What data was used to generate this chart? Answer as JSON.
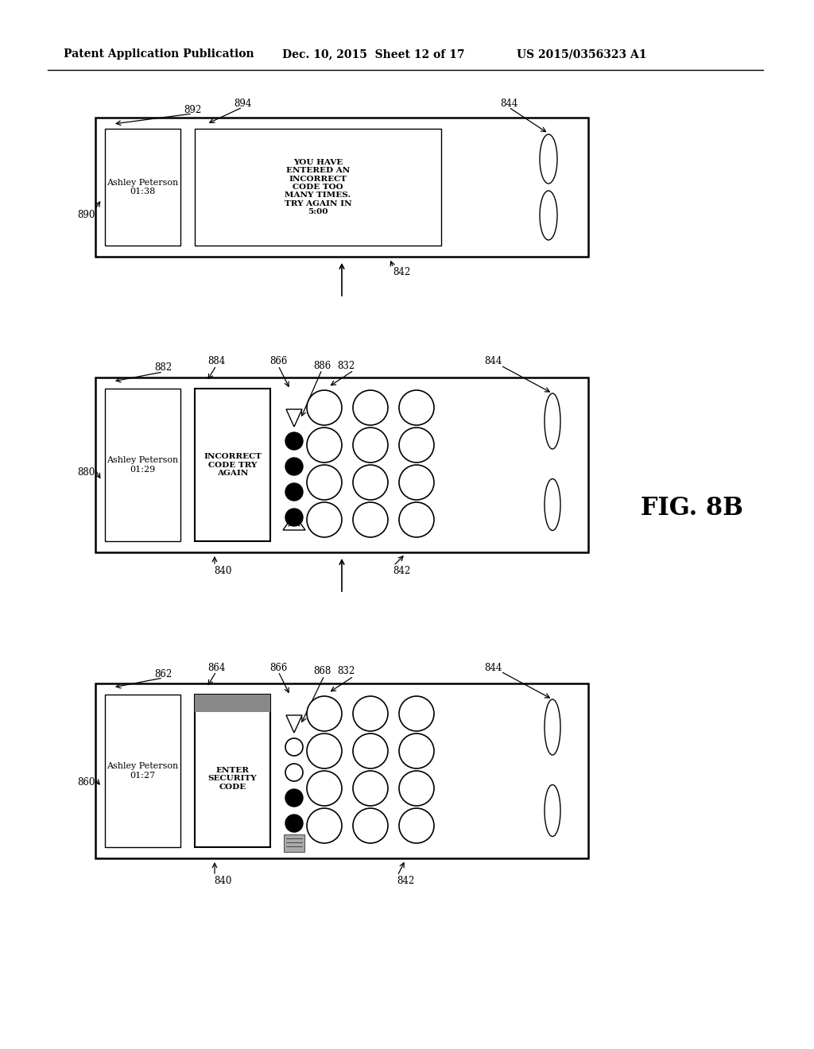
{
  "bg_color": "#ffffff",
  "header_left": "Patent Application Publication",
  "header_mid": "Dec. 10, 2015  Sheet 12 of 17",
  "header_right": "US 2015/0356323 A1",
  "fig_label": "FIG. 8B"
}
